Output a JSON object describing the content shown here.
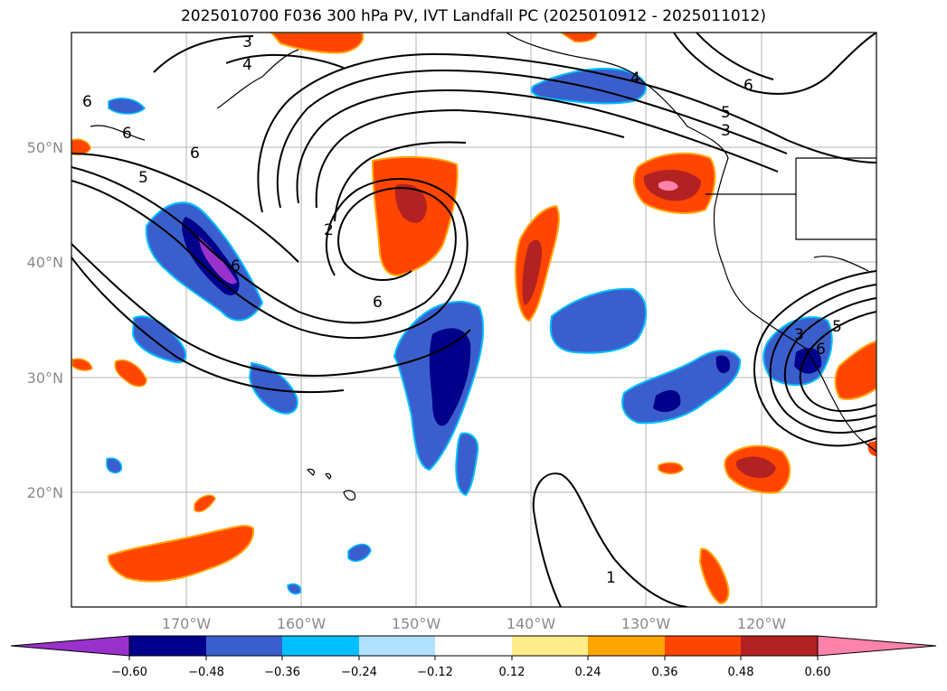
{
  "title": "2025010700 F036 300 hPa PV, IVT Landfall PC (2025010912 - 2025011012)",
  "lat_labels": [
    "50°N",
    "40°N",
    "30°N",
    "20°N"
  ],
  "lon_labels": [
    "170°W",
    "160°W",
    "150°W",
    "140°W",
    "130°W",
    "120°W"
  ],
  "colorbar": {
    "ticks": [
      "−0.60",
      "−0.48",
      "−0.36",
      "−0.24",
      "−0.12",
      "0.12",
      "0.24",
      "0.36",
      "0.48",
      "0.60"
    ],
    "colors": [
      "#9932cc",
      "#00008b",
      "#3a5fcd",
      "#00bfff",
      "#b0e2ff",
      "#ffffff",
      "#ffec8b",
      "#ffa500",
      "#ff4500",
      "#b22222",
      "#ff82ab"
    ]
  },
  "contour_labels": [
    "3",
    "4",
    "6",
    "6",
    "6",
    "5",
    "6",
    "2",
    "6",
    "6",
    "4",
    "5",
    "3",
    "6",
    "5",
    "3",
    "1"
  ]
}
